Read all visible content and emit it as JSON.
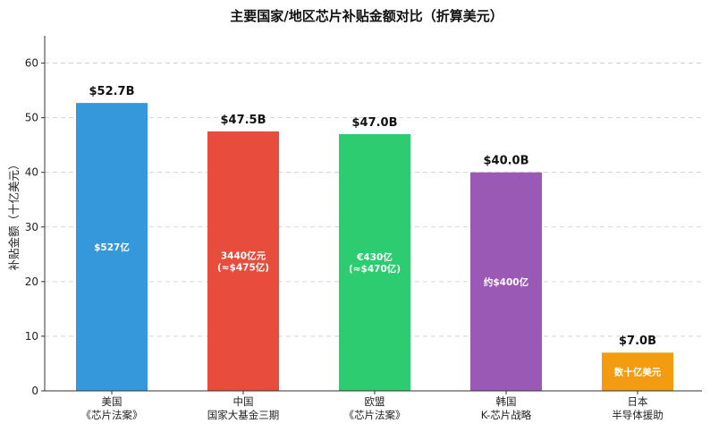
{
  "chart_data": {
    "type": "bar",
    "title": "主要国家/地区芯片补贴金额对比（折算美元）",
    "ylabel": "补贴金额（十亿美元）",
    "xlabel": "",
    "ylim": [
      0,
      65
    ],
    "yticks": [
      0,
      10,
      20,
      30,
      40,
      50,
      60
    ],
    "grid": true,
    "categories": [
      [
        "美国",
        "《芯片法案》"
      ],
      [
        "中国",
        "国家大基金三期"
      ],
      [
        "欧盟",
        "《芯片法案》"
      ],
      [
        "韩国",
        "K-芯片战略"
      ],
      [
        "日本",
        "半导体援助"
      ]
    ],
    "values": [
      52.7,
      47.5,
      47.0,
      40.0,
      7.0
    ],
    "value_labels": [
      "$52.7B",
      "$47.5B",
      "$47.0B",
      "$40.0B",
      "$7.0B"
    ],
    "inner_labels": [
      [
        "$527亿"
      ],
      [
        "3440亿元",
        "(≈$475亿)"
      ],
      [
        "€430亿",
        "(≈$470亿)"
      ],
      [
        "约$400亿"
      ],
      [
        "数十亿美元"
      ]
    ],
    "colors": [
      "#3498db",
      "#e74c3c",
      "#2ecc71",
      "#9b59b6",
      "#f39c12"
    ]
  }
}
